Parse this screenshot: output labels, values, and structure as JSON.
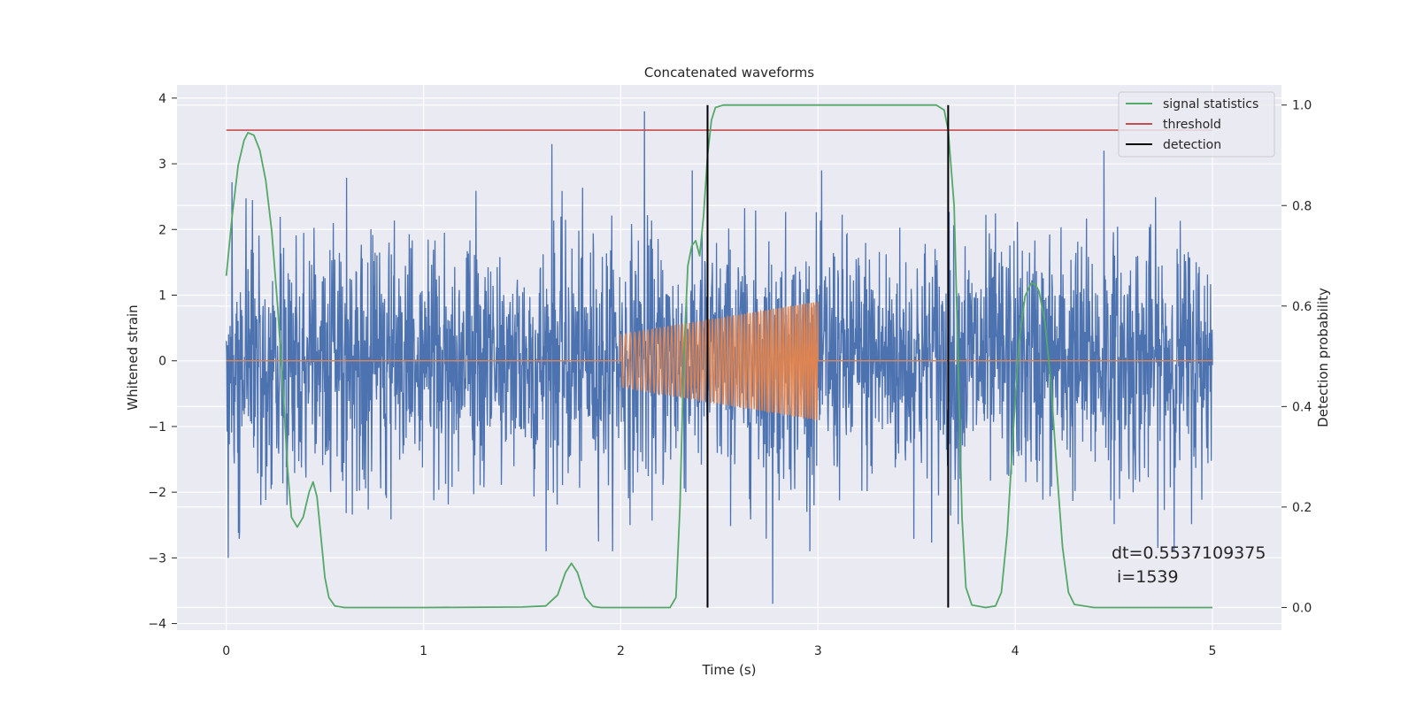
{
  "chart_data": {
    "type": "line",
    "title": "Concatenated waveforms",
    "xlabel": "Time (s)",
    "ylabel": "Whitened strain",
    "y2label": "Detection probability",
    "xlim": [
      -0.25,
      5.35
    ],
    "ylim": [
      -4.1,
      4.2
    ],
    "y2lim": [
      -0.045,
      1.04
    ],
    "xticks": [
      0,
      1,
      2,
      3,
      4,
      5
    ],
    "yticks": [
      -4,
      -3,
      -2,
      -1,
      0,
      1,
      2,
      3,
      4
    ],
    "y2ticks": [
      0.0,
      0.2,
      0.4,
      0.6,
      0.8,
      1.0
    ],
    "xtick_labels": [
      "0",
      "1",
      "2",
      "3",
      "4",
      "5"
    ],
    "ytick_labels": [
      "−4",
      "−3",
      "−2",
      "−1",
      "0",
      "1",
      "2",
      "3",
      "4"
    ],
    "y2tick_labels": [
      "0.0",
      "0.2",
      "0.4",
      "0.6",
      "0.8",
      "1.0"
    ],
    "grid": true,
    "legend_position": "top-right",
    "colors": {
      "strain": "#4c72b0",
      "waveform": "#dd8452",
      "signal_statistics": "#55a868",
      "threshold": "#c44e52",
      "detection": "#000000",
      "background": "#eaeaf2"
    },
    "series": [
      {
        "axis": "left",
        "kind": "noise",
        "x_range": [
          0,
          5
        ],
        "typical_amplitude": 2.3,
        "peak_values": [
          {
            "x": 0.01,
            "y": -3.0
          },
          {
            "x": 1.65,
            "y": 3.3
          },
          {
            "x": 2.12,
            "y": 3.8
          },
          {
            "x": 2.77,
            "y": -3.7
          },
          {
            "x": 4.45,
            "y": 3.2
          }
        ]
      },
      {
        "axis": "left",
        "kind": "chirp",
        "x_range": [
          0,
          5
        ],
        "chirp_start": 2.0,
        "chirp_end": 3.0,
        "start_amplitude": 0.4,
        "end_amplitude": 0.9,
        "start_frequency_hz": 40,
        "end_frequency_hz": 90
      },
      {
        "name": "signal statistics",
        "axis": "right",
        "points": [
          [
            0.0,
            0.66
          ],
          [
            0.03,
            0.78
          ],
          [
            0.06,
            0.88
          ],
          [
            0.09,
            0.93
          ],
          [
            0.11,
            0.945
          ],
          [
            0.14,
            0.94
          ],
          [
            0.17,
            0.91
          ],
          [
            0.2,
            0.85
          ],
          [
            0.23,
            0.75
          ],
          [
            0.26,
            0.6
          ],
          [
            0.29,
            0.42
          ],
          [
            0.31,
            0.28
          ],
          [
            0.33,
            0.18
          ],
          [
            0.36,
            0.16
          ],
          [
            0.39,
            0.18
          ],
          [
            0.42,
            0.23
          ],
          [
            0.44,
            0.25
          ],
          [
            0.46,
            0.22
          ],
          [
            0.48,
            0.14
          ],
          [
            0.5,
            0.06
          ],
          [
            0.52,
            0.02
          ],
          [
            0.55,
            0.003
          ],
          [
            0.6,
            0.0
          ],
          [
            1.0,
            0.0
          ],
          [
            1.5,
            0.001
          ],
          [
            1.62,
            0.003
          ],
          [
            1.68,
            0.025
          ],
          [
            1.72,
            0.07
          ],
          [
            1.75,
            0.088
          ],
          [
            1.78,
            0.07
          ],
          [
            1.82,
            0.02
          ],
          [
            1.86,
            0.002
          ],
          [
            1.9,
            0.0
          ],
          [
            2.25,
            0.0
          ],
          [
            2.28,
            0.02
          ],
          [
            2.3,
            0.2
          ],
          [
            2.32,
            0.5
          ],
          [
            2.34,
            0.68
          ],
          [
            2.36,
            0.72
          ],
          [
            2.38,
            0.73
          ],
          [
            2.4,
            0.7
          ],
          [
            2.42,
            0.78
          ],
          [
            2.44,
            0.9
          ],
          [
            2.46,
            0.97
          ],
          [
            2.48,
            0.995
          ],
          [
            2.52,
            1.0
          ],
          [
            3.6,
            1.0
          ],
          [
            3.64,
            0.99
          ],
          [
            3.66,
            0.95
          ],
          [
            3.69,
            0.8
          ],
          [
            3.71,
            0.5
          ],
          [
            3.73,
            0.18
          ],
          [
            3.75,
            0.04
          ],
          [
            3.78,
            0.005
          ],
          [
            3.85,
            0.0
          ],
          [
            3.9,
            0.003
          ],
          [
            3.93,
            0.03
          ],
          [
            3.96,
            0.15
          ],
          [
            3.99,
            0.35
          ],
          [
            4.02,
            0.53
          ],
          [
            4.05,
            0.62
          ],
          [
            4.08,
            0.645
          ],
          [
            4.1,
            0.645
          ],
          [
            4.12,
            0.63
          ],
          [
            4.15,
            0.57
          ],
          [
            4.18,
            0.45
          ],
          [
            4.21,
            0.28
          ],
          [
            4.24,
            0.12
          ],
          [
            4.27,
            0.03
          ],
          [
            4.3,
            0.006
          ],
          [
            4.4,
            0.0
          ],
          [
            5.0,
            0.0
          ]
        ]
      },
      {
        "name": "threshold",
        "axis": "right",
        "points": [
          [
            0.0,
            0.95
          ],
          [
            5.0,
            0.95
          ]
        ]
      },
      {
        "name": "detection",
        "axis": "right",
        "kind": "vertical-lines",
        "x": [
          2.44,
          3.66
        ],
        "y_range": [
          0.0,
          1.0
        ]
      }
    ],
    "annotation": {
      "line1": "dt=0.5537109375",
      "line2": " i=1539"
    }
  }
}
